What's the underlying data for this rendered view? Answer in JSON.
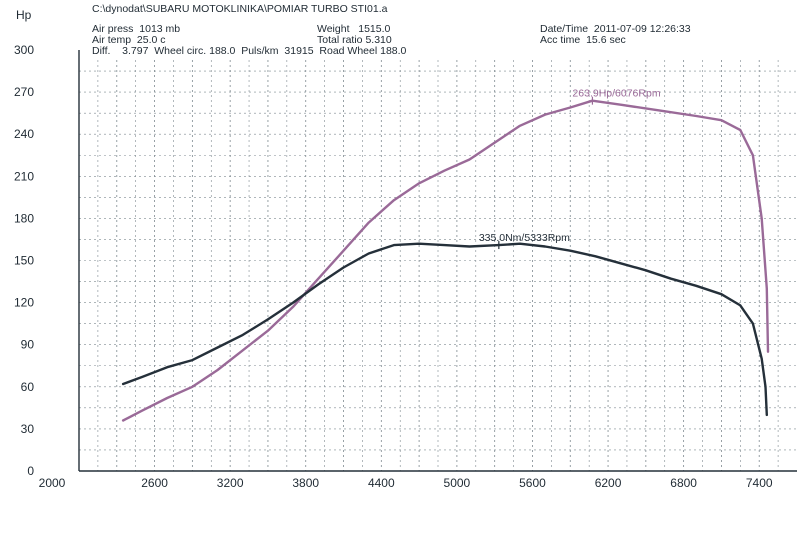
{
  "header": {
    "file": "C:\\dynodat\\SUBARU MOTOKLINIKA\\POMIAR TURBO STI01.a",
    "air_press": "Air press  1013 mb",
    "air_temp": "Air temp  25.0 c",
    "diff_line": "Diff.    3.797  Wheel circ. 188.0  Puls/km  31915  Road Wheel 188.0",
    "weight": "Weight   1515.0",
    "total_ratio": "Total ratio 5.310",
    "date_time": "Date/Time  2011-07-09 12:26:33",
    "acc_time": "Acc time  15.6 sec"
  },
  "chart_data": {
    "type": "line",
    "ylabel": "Hp",
    "xlim": [
      2000,
      7700
    ],
    "ylim": [
      0,
      300
    ],
    "x_ticks": [
      "2000",
      "2600",
      "3200",
      "3800",
      "4400",
      "5000",
      "5600",
      "6200",
      "6800",
      "7400"
    ],
    "y_ticks": [
      "0",
      "30",
      "60",
      "90",
      "120",
      "150",
      "180",
      "210",
      "240",
      "270",
      "300"
    ],
    "grid": true,
    "colors": {
      "power": "#9a6a98",
      "torque": "#25303a",
      "grid": "#7f8a90",
      "axis": "#25303a"
    },
    "series": [
      {
        "id": "power",
        "points": [
          [
            2350,
            36
          ],
          [
            2500,
            43
          ],
          [
            2700,
            52
          ],
          [
            2900,
            60
          ],
          [
            3100,
            72
          ],
          [
            3300,
            86
          ],
          [
            3500,
            100
          ],
          [
            3700,
            117
          ],
          [
            3900,
            137
          ],
          [
            4100,
            157
          ],
          [
            4300,
            177
          ],
          [
            4500,
            193
          ],
          [
            4700,
            205
          ],
          [
            4900,
            214
          ],
          [
            5100,
            222
          ],
          [
            5300,
            234
          ],
          [
            5500,
            246
          ],
          [
            5700,
            254
          ],
          [
            5900,
            259
          ],
          [
            6076,
            263.9
          ],
          [
            6300,
            261
          ],
          [
            6600,
            257
          ],
          [
            6900,
            253
          ],
          [
            7100,
            250
          ],
          [
            7250,
            243
          ],
          [
            7350,
            225
          ],
          [
            7420,
            180
          ],
          [
            7460,
            130
          ],
          [
            7470,
            85
          ]
        ]
      },
      {
        "id": "torque",
        "points": [
          [
            2350,
            62
          ],
          [
            2500,
            67
          ],
          [
            2700,
            74
          ],
          [
            2900,
            79
          ],
          [
            3100,
            88
          ],
          [
            3300,
            97
          ],
          [
            3500,
            108
          ],
          [
            3700,
            120
          ],
          [
            3900,
            133
          ],
          [
            4100,
            145
          ],
          [
            4300,
            155
          ],
          [
            4500,
            161
          ],
          [
            4700,
            162
          ],
          [
            4900,
            161
          ],
          [
            5100,
            160
          ],
          [
            5333,
            161
          ],
          [
            5500,
            162
          ],
          [
            5700,
            160
          ],
          [
            5900,
            157
          ],
          [
            6100,
            153
          ],
          [
            6300,
            148
          ],
          [
            6500,
            143
          ],
          [
            6700,
            137
          ],
          [
            6900,
            132
          ],
          [
            7100,
            126
          ],
          [
            7250,
            118
          ],
          [
            7350,
            105
          ],
          [
            7420,
            80
          ],
          [
            7450,
            60
          ],
          [
            7460,
            40
          ]
        ]
      }
    ],
    "annotations": [
      {
        "series": "power",
        "x": 6076,
        "y": 263.9,
        "text": "263.9Hp/6076Rpm"
      },
      {
        "series": "torque",
        "x": 5333,
        "y": 161,
        "text": "335.0Nm/5333Rpm"
      }
    ]
  }
}
